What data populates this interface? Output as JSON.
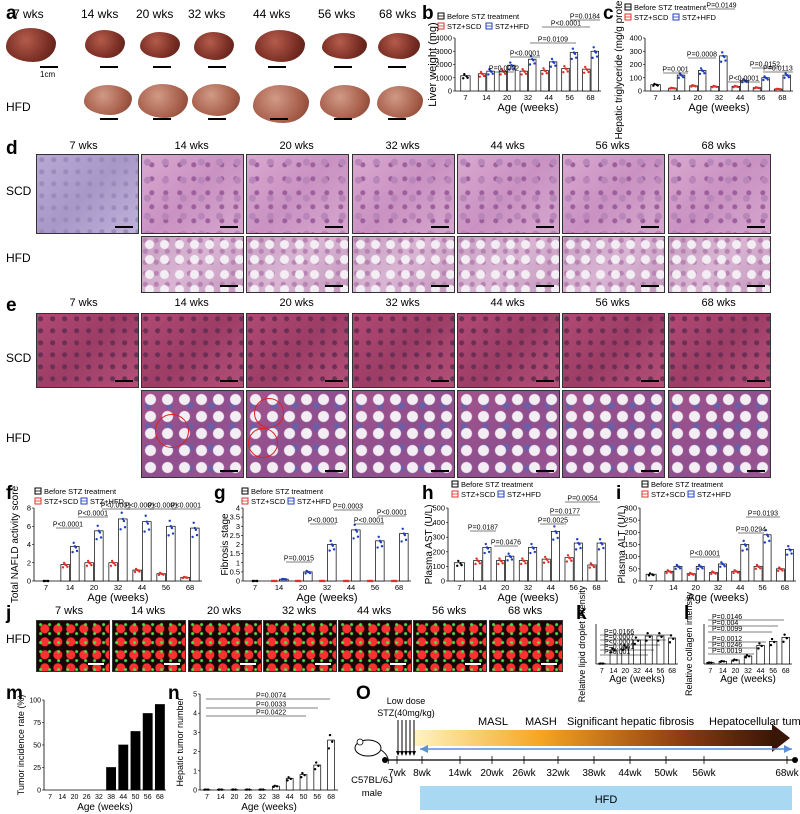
{
  "panels": {
    "a": "a",
    "b": "b",
    "c": "c",
    "d": "d",
    "e": "e",
    "f": "f",
    "g": "g",
    "h": "h",
    "i": "i",
    "j": "j",
    "k": "k",
    "l": "l",
    "m": "m",
    "n": "n",
    "o": "O"
  },
  "ages": [
    "7 wks",
    "14 wks",
    "20 wks",
    "32 wks",
    "44 wks",
    "56 wks",
    "68 wks"
  ],
  "rows": {
    "scd": "SCD",
    "hfd": "HFD"
  },
  "scale_bar": "1cm",
  "legend": {
    "before": "Before STZ treatment",
    "scd": "STZ+SCD",
    "hfd": "STZ+HFD"
  },
  "colors": {
    "before": "#000000",
    "scd": "#e0302a",
    "hfd": "#1f3fbf"
  },
  "chart_data": [
    {
      "panel": "b",
      "type": "bar",
      "categories": [
        "7",
        "14",
        "20",
        "32",
        "44",
        "56",
        "68"
      ],
      "ylabel": "Liver weight (mg)",
      "xlabel": "Age (weeks)",
      "ylim": [
        0,
        4000
      ],
      "yticks": [
        0,
        1000,
        2000,
        3000,
        4000
      ],
      "series": [
        {
          "name": "Before STZ treatment",
          "values": [
            1150,
            null,
            null,
            null,
            null,
            null,
            null
          ]
        },
        {
          "name": "STZ+SCD",
          "values": [
            null,
            1300,
            1500,
            1500,
            1550,
            1700,
            1650
          ]
        },
        {
          "name": "STZ+HFD",
          "values": [
            null,
            1500,
            1950,
            2400,
            2200,
            2900,
            3000
          ]
        }
      ],
      "annotations": [
        "P=0.0002",
        "P<0.0001",
        "P=0.0109",
        "P<0.0001",
        "P=0.0184"
      ]
    },
    {
      "panel": "c",
      "type": "bar",
      "categories": [
        "7",
        "14",
        "20",
        "32",
        "44",
        "56",
        "68"
      ],
      "ylabel": "Hepatic triglyceride (mg/g protein)",
      "xlabel": "Age (weeks)",
      "ylim": [
        0,
        400
      ],
      "yticks": [
        0,
        100,
        200,
        300,
        400
      ],
      "series": [
        {
          "name": "Before STZ treatment",
          "values": [
            48,
            null,
            null,
            null,
            null,
            null,
            null
          ]
        },
        {
          "name": "STZ+SCD",
          "values": [
            null,
            22,
            40,
            35,
            35,
            25,
            15
          ]
        },
        {
          "name": "STZ+HFD",
          "values": [
            null,
            120,
            155,
            265,
            80,
            100,
            120
          ]
        }
      ],
      "annotations": [
        "P=0.001",
        "P=0.0008",
        "P=0.0149",
        "P<0.0001",
        "P=0.0152",
        "P=0.0113"
      ]
    },
    {
      "panel": "f",
      "type": "bar",
      "categories": [
        "7",
        "14",
        "20",
        "32",
        "44",
        "56",
        "68"
      ],
      "ylabel": "Total NAFLD activity score",
      "xlabel": "Age (weeks)",
      "ylim": [
        0,
        8
      ],
      "yticks": [
        0,
        2,
        4,
        6,
        8
      ],
      "series": [
        {
          "name": "Before STZ treatment",
          "values": [
            0,
            null,
            null,
            null,
            null,
            null,
            null
          ]
        },
        {
          "name": "STZ+SCD",
          "values": [
            null,
            1.8,
            2.0,
            2.0,
            1.2,
            0.8,
            0.4
          ]
        },
        {
          "name": "STZ+HFD",
          "values": [
            null,
            3.8,
            5.5,
            6.8,
            6.5,
            6.0,
            5.8
          ]
        }
      ],
      "annotations": [
        "P<0.0001",
        "P<0.0001",
        "P<0.0001",
        "P<0.0001",
        "P<0.0001",
        "P<0.0001"
      ]
    },
    {
      "panel": "g",
      "type": "bar",
      "categories": [
        "7",
        "14",
        "20",
        "32",
        "44",
        "56",
        "68"
      ],
      "ylabel": "Fibrosis stage",
      "xlabel": "Age (weeks)",
      "ylim": [
        0,
        4
      ],
      "yticks": [
        0,
        0.5,
        1,
        1.5,
        2,
        2.5,
        3,
        3.5,
        4
      ],
      "series": [
        {
          "name": "Before STZ treatment",
          "values": [
            0,
            null,
            null,
            null,
            null,
            null,
            null
          ]
        },
        {
          "name": "STZ+SCD",
          "values": [
            null,
            0,
            0,
            0,
            0,
            0,
            0
          ]
        },
        {
          "name": "STZ+HFD",
          "values": [
            null,
            0.1,
            0.5,
            2.0,
            2.8,
            2.2,
            2.6
          ]
        }
      ],
      "annotations": [
        "P=0.0015",
        "P<0.0001",
        "P=0.0003",
        "P<0.0001",
        "P<0.0001"
      ]
    },
    {
      "panel": "h",
      "type": "bar",
      "categories": [
        "7",
        "14",
        "20",
        "32",
        "44",
        "56",
        "68"
      ],
      "ylabel": "Plasma AST (U/L)",
      "xlabel": "Age (weeks)",
      "ylim": [
        0,
        500
      ],
      "yticks": [
        0,
        100,
        200,
        300,
        400,
        500
      ],
      "series": [
        {
          "name": "Before STZ treatment",
          "values": [
            125,
            null,
            null,
            null,
            null,
            null,
            null
          ]
        },
        {
          "name": "STZ+SCD",
          "values": [
            null,
            140,
            140,
            140,
            150,
            160,
            110
          ]
        },
        {
          "name": "STZ+HFD",
          "values": [
            null,
            230,
            170,
            230,
            340,
            260,
            260
          ]
        }
      ],
      "annotations": [
        "P=0.0187",
        "P=0.0476",
        "P=0.0025",
        "P=0.0177",
        "P=0.0054"
      ]
    },
    {
      "panel": "i",
      "type": "bar",
      "categories": [
        "7",
        "14",
        "20",
        "32",
        "44",
        "56",
        "68"
      ],
      "ylabel": "Plasma ALT (U/L)",
      "xlabel": "Age (weeks)",
      "ylim": [
        0,
        300
      ],
      "yticks": [
        0,
        50,
        100,
        150,
        200,
        250,
        300
      ],
      "series": [
        {
          "name": "Before STZ treatment",
          "values": [
            28,
            null,
            null,
            null,
            null,
            null,
            null
          ]
        },
        {
          "name": "STZ+SCD",
          "values": [
            null,
            40,
            30,
            35,
            40,
            60,
            50
          ]
        },
        {
          "name": "STZ+HFD",
          "values": [
            null,
            60,
            60,
            70,
            150,
            190,
            130
          ]
        }
      ],
      "annotations": [
        "P<0.0001",
        "P=0.0294",
        "P=0.0193"
      ]
    },
    {
      "panel": "k",
      "type": "bar",
      "categories": [
        "7",
        "14",
        "20",
        "32",
        "44",
        "56",
        "68"
      ],
      "ylabel": "Relative lipid droplet intensity",
      "xlabel": "Age (weeks)",
      "ylim": [
        0,
        200
      ],
      "series": [
        {
          "values": [
            2,
            70,
            85,
            120,
            140,
            140,
            130
          ]
        }
      ],
      "annotations": [
        "P=0.0166",
        "P=0.0007",
        "P<0.0001",
        "P=0.0261",
        "P=0.001"
      ]
    },
    {
      "panel": "l",
      "type": "bar",
      "categories": [
        "7",
        "14",
        "20",
        "32",
        "44",
        "56",
        "68"
      ],
      "ylabel": "Relative collagen intensity",
      "xlabel": "Age (weeks)",
      "ylim": [
        0,
        30
      ],
      "series": [
        {
          "values": [
            1,
            2,
            3,
            6,
            14,
            17,
            20
          ]
        }
      ],
      "annotations": [
        "P=0.0146",
        "P=0.004",
        "P=0.0099",
        "P=0.0012",
        "P=0.0246",
        "P=0.0019"
      ]
    },
    {
      "panel": "m",
      "type": "bar",
      "categories": [
        "7",
        "14",
        "20",
        "26",
        "32",
        "38",
        "44",
        "50",
        "56",
        "68"
      ],
      "ylabel": "Tumor incidence rate (%)",
      "xlabel": "Age (weeks)",
      "ylim": [
        0,
        100
      ],
      "yticks": [
        0,
        25,
        50,
        75,
        100
      ],
      "series": [
        {
          "values": [
            0,
            0,
            0,
            0,
            0,
            25,
            50,
            65,
            85,
            95
          ]
        }
      ]
    },
    {
      "panel": "n",
      "type": "bar",
      "categories": [
        "7",
        "14",
        "20",
        "26",
        "32",
        "38",
        "44",
        "50",
        "56",
        "68"
      ],
      "ylabel": "Hepatic tumor number",
      "xlabel": "Age (weeks)",
      "ylim": [
        0,
        5
      ],
      "yticks": [
        0,
        1,
        2,
        3,
        4,
        5
      ],
      "series": [
        {
          "values": [
            0.02,
            0.02,
            0.02,
            0.02,
            0.02,
            0.2,
            0.6,
            0.8,
            1.3,
            2.6
          ]
        }
      ],
      "annotations": [
        "P=0.0074",
        "P=0.0033",
        "P=0.0422"
      ]
    }
  ],
  "timeline": {
    "injection": "Low dose\nSTZ(40mg/kg)",
    "stages": [
      "MASL",
      "MASH",
      "Significant hepatic fibrosis",
      "Hepatocellular tumor"
    ],
    "mouse": "C57BL/6J\nmale",
    "weeks": [
      "7wk",
      "8wk",
      "14wk",
      "20wk",
      "26wk",
      "32wk",
      "38wk",
      "44wk",
      "50wk",
      "56wk",
      "68wk"
    ],
    "hfd": "HFD"
  }
}
